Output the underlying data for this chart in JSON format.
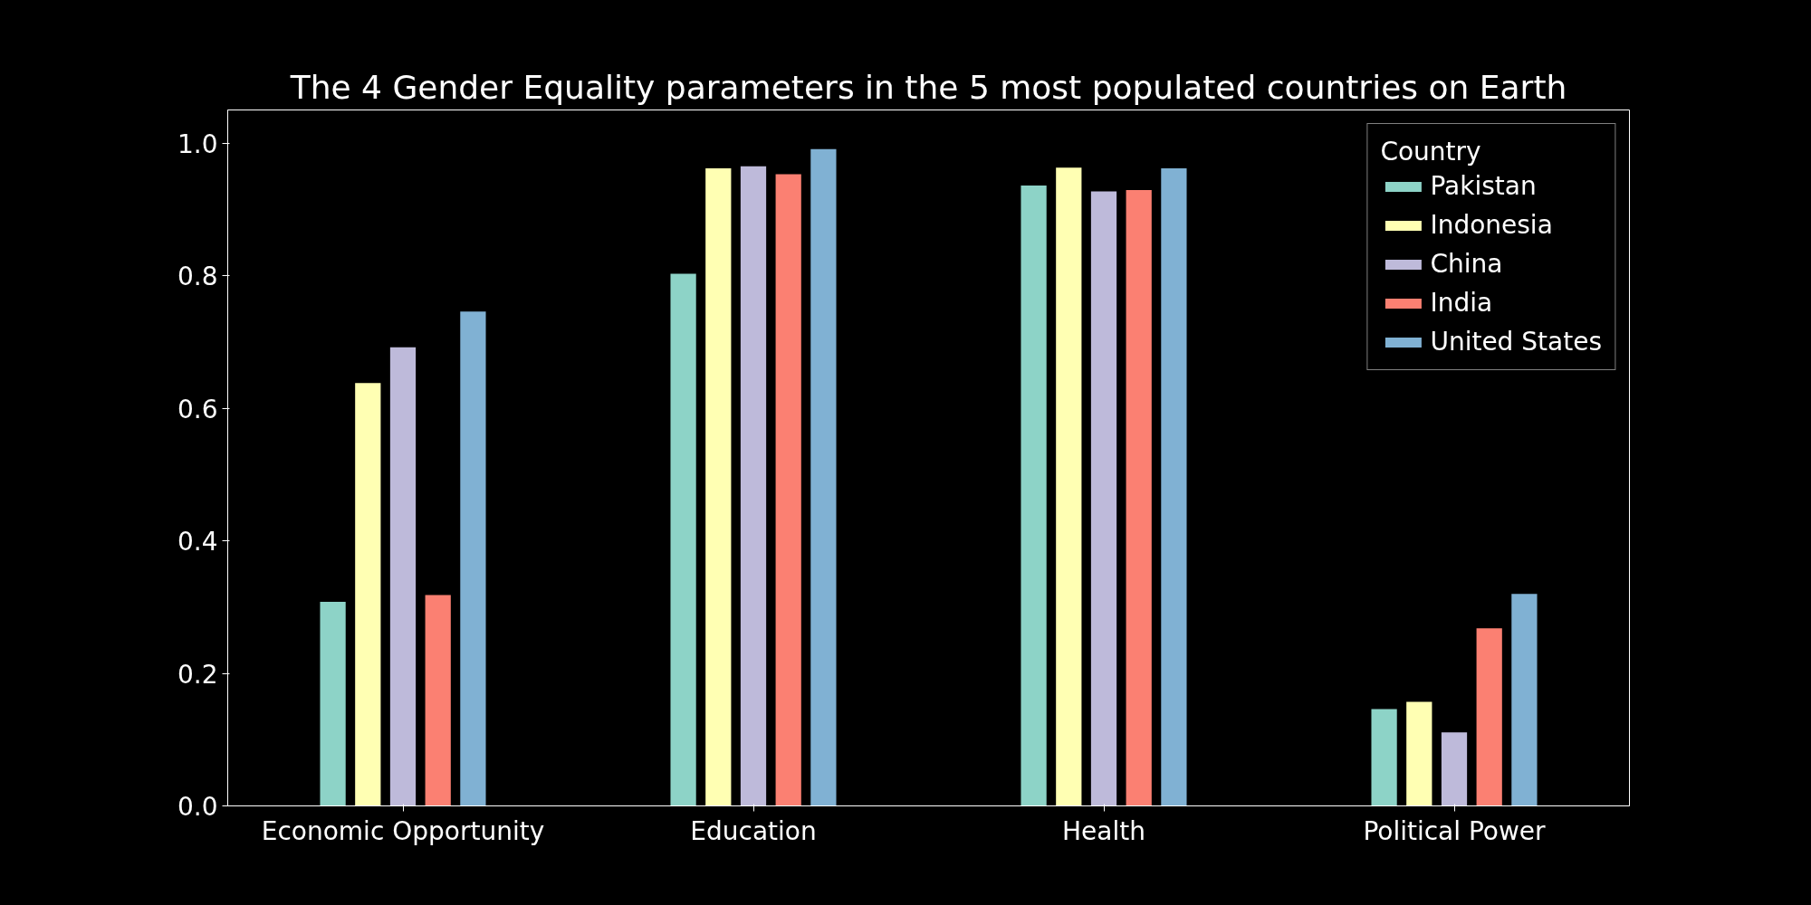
{
  "chart_data": {
    "type": "bar",
    "title": "The 4 Gender Equality parameters in the 5 most populated countries on Earth",
    "categories": [
      "Economic Opportunity",
      "Education",
      "Health",
      "Political Power"
    ],
    "series": [
      {
        "name": "Pakistan",
        "color": "#8dd3c7",
        "values": [
          0.308,
          0.803,
          0.936,
          0.146
        ]
      },
      {
        "name": "Indonesia",
        "color": "#ffffb3",
        "values": [
          0.638,
          0.962,
          0.963,
          0.157
        ]
      },
      {
        "name": "China",
        "color": "#bebada",
        "values": [
          0.692,
          0.965,
          0.927,
          0.111
        ]
      },
      {
        "name": "India",
        "color": "#fb8072",
        "values": [
          0.318,
          0.953,
          0.929,
          0.268
        ]
      },
      {
        "name": "United States",
        "color": "#80b1d3",
        "values": [
          0.746,
          0.991,
          0.962,
          0.32
        ]
      }
    ],
    "legend_title": "Country",
    "legend": "top right",
    "grid": false,
    "ylim": [
      0,
      1.05
    ],
    "yticks": [
      {
        "value": 0,
        "label": "0.0"
      },
      {
        "value": 0.2,
        "label": "0.2"
      },
      {
        "value": 0.4,
        "label": "0.4"
      },
      {
        "value": 0.6,
        "label": "0.6"
      },
      {
        "value": 0.8,
        "label": "0.8"
      },
      {
        "value": 1,
        "label": "1.0"
      }
    ]
  }
}
